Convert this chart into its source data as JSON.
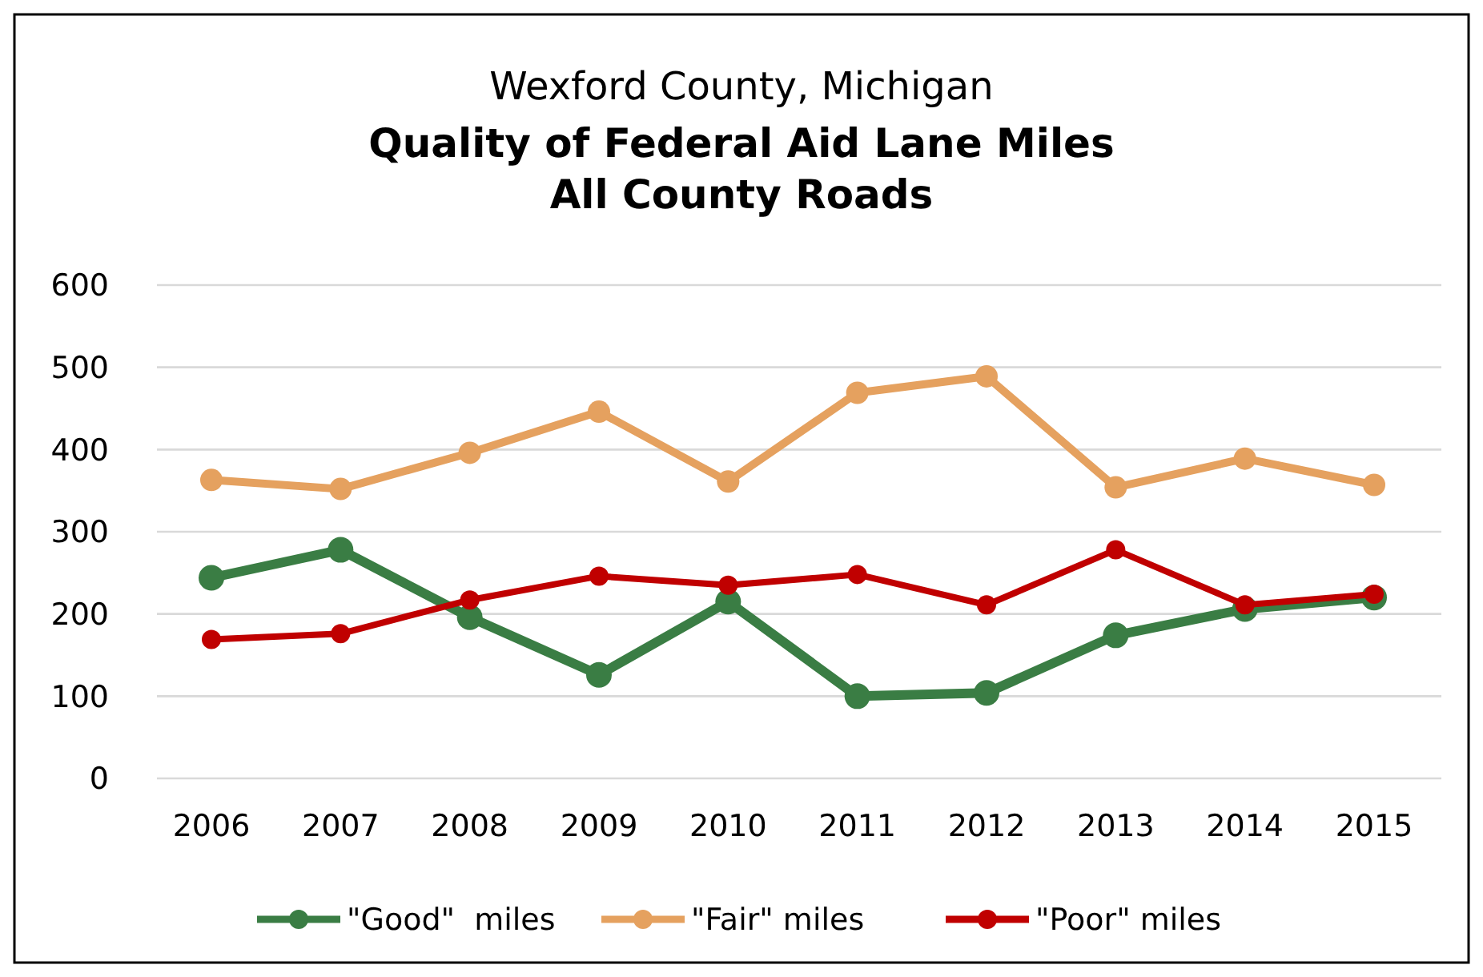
{
  "chart_data": {
    "type": "line",
    "subtitle": "Wexford County, Michigan",
    "title": "Quality of Federal Aid Lane Miles\nAll County Roads",
    "categories": [
      "2006",
      "2007",
      "2008",
      "2009",
      "2010",
      "2011",
      "2012",
      "2013",
      "2014",
      "2015"
    ],
    "series": [
      {
        "name": "\"Good\"  miles",
        "color": "#3a7d44",
        "values": [
          244,
          278,
          196,
          126,
          215,
          100,
          104,
          174,
          206,
          220
        ]
      },
      {
        "name": "\"Fair\" miles",
        "color": "#e5a15f",
        "values": [
          363,
          352,
          396,
          446,
          361,
          469,
          489,
          354,
          389,
          357
        ]
      },
      {
        "name": "\"Poor\" miles",
        "color": "#c00000",
        "values": [
          169,
          176,
          217,
          246,
          235,
          248,
          211,
          278,
          211,
          224
        ]
      }
    ],
    "ylim": [
      0,
      600
    ],
    "yticks": [
      0,
      100,
      200,
      300,
      400,
      500,
      600
    ],
    "grid": "y",
    "legend": "bottom",
    "marker": "circle",
    "line_style": "solid"
  }
}
